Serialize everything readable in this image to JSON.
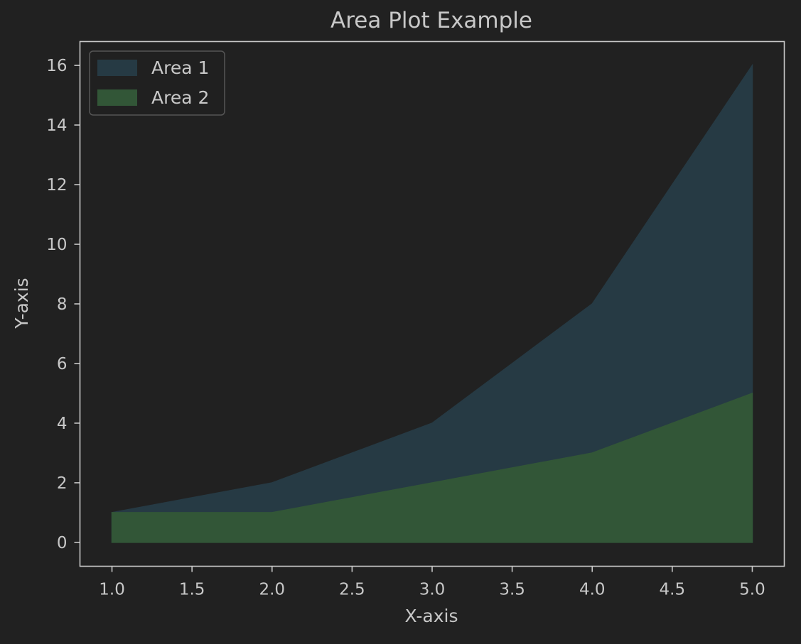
{
  "chart_data": {
    "type": "area",
    "title": "Area Plot Example",
    "xlabel": "X-axis",
    "ylabel": "Y-axis",
    "x": [
      1,
      2,
      3,
      4,
      5
    ],
    "xlim": [
      0.8,
      5.2
    ],
    "ylim": [
      -0.8,
      16.8
    ],
    "xticks": [
      "1.0",
      "1.5",
      "2.0",
      "2.5",
      "3.0",
      "3.5",
      "4.0",
      "4.5",
      "5.0"
    ],
    "yticks": [
      "0",
      "2",
      "4",
      "6",
      "8",
      "10",
      "12",
      "14",
      "16"
    ],
    "grid": false,
    "legend_position": "top-left",
    "series": [
      {
        "name": "Area 1",
        "values": [
          1,
          2,
          4,
          8,
          16
        ],
        "color": "#263a44"
      },
      {
        "name": "Area 2",
        "values": [
          1,
          1,
          2,
          3,
          5
        ],
        "color": "#325637"
      }
    ],
    "colors": {
      "background": "#212121",
      "axes": "#c8c8c8",
      "text": "#c8c8c8"
    }
  }
}
